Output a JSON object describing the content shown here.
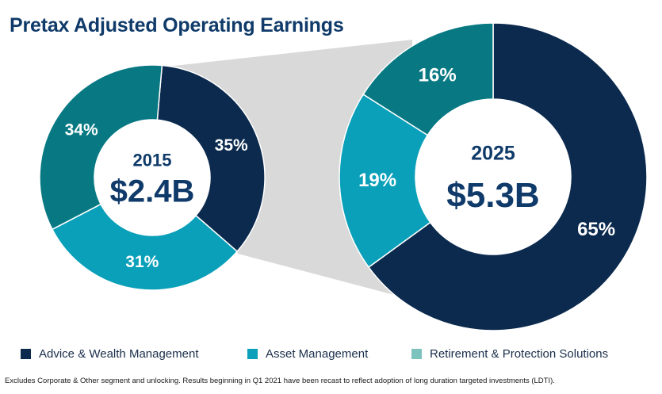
{
  "title": "Pretax Adjusted Operating Earnings",
  "footnote": "Excludes Corporate & Other segment and unlocking. Results beginning in Q1 2021 have been recast to reflect adoption of long duration targeted investments (LDTI).",
  "legend": [
    {
      "label": "Advice & Wealth Management",
      "color": "#0b2a4e"
    },
    {
      "label": "Asset Management",
      "color": "#0aa0b9"
    },
    {
      "label": "Retirement & Protection Solutions",
      "color": "#7cc3bd"
    }
  ],
  "chart_data": [
    {
      "type": "pie",
      "style": "donut",
      "year": "2015",
      "total": "$2.4B",
      "slices": [
        {
          "segment": "Advice & Wealth Management",
          "value": 35,
          "label": "35%",
          "color": "#0b2a4e"
        },
        {
          "segment": "Asset Management",
          "value": 31,
          "label": "31%",
          "color": "#0aa0b9"
        },
        {
          "segment": "Retirement & Protection Solutions",
          "value": 34,
          "label": "34%",
          "color": "#087983"
        }
      ]
    },
    {
      "type": "pie",
      "style": "donut",
      "year": "2025",
      "total": "$5.3B",
      "slices": [
        {
          "segment": "Advice & Wealth Management",
          "value": 65,
          "label": "65%",
          "color": "#0b2a4e"
        },
        {
          "segment": "Asset Management",
          "value": 19,
          "label": "19%",
          "color": "#0aa0b9"
        },
        {
          "segment": "Retirement & Protection Solutions",
          "value": 16,
          "label": "16%",
          "color": "#087983"
        }
      ]
    }
  ]
}
